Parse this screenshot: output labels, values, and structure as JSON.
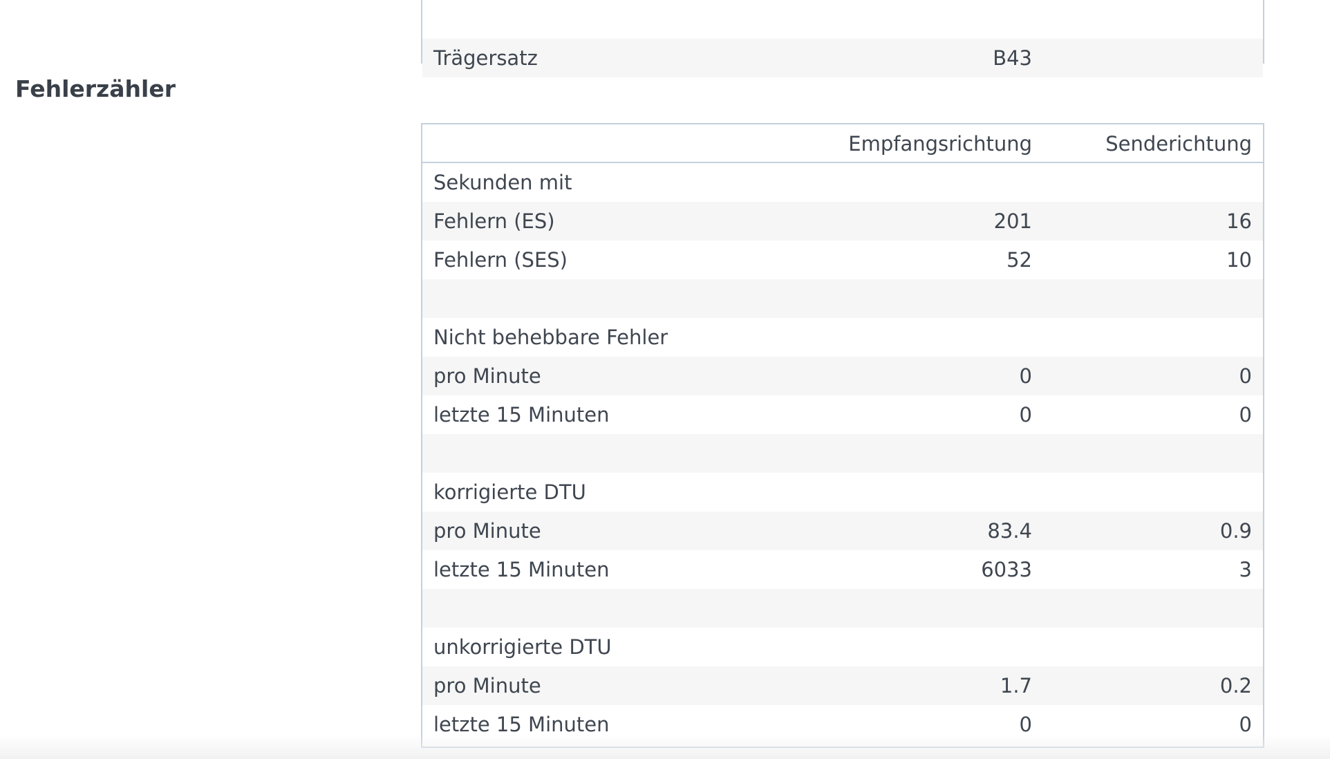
{
  "top_table": {
    "rows": [
      {
        "label": "",
        "value": ""
      },
      {
        "label": "Trägersatz",
        "value": "B43"
      }
    ]
  },
  "section": {
    "title": "Fehlerzähler"
  },
  "errors_table": {
    "columns": [
      "",
      "Empfangsrichtung",
      "Senderichtung"
    ],
    "rows": [
      {
        "label": "Sekunden mit",
        "rx": "",
        "tx": ""
      },
      {
        "label": "Fehlern (ES)",
        "rx": "201",
        "tx": "16"
      },
      {
        "label": "Fehlern (SES)",
        "rx": "52",
        "tx": "10"
      },
      {
        "label": "",
        "rx": "",
        "tx": ""
      },
      {
        "label": "Nicht behebbare Fehler",
        "rx": "",
        "tx": ""
      },
      {
        "label": "pro Minute",
        "rx": "0",
        "tx": "0"
      },
      {
        "label": "letzte 15 Minuten",
        "rx": "0",
        "tx": "0"
      },
      {
        "label": "",
        "rx": "",
        "tx": ""
      },
      {
        "label": "korrigierte DTU",
        "rx": "",
        "tx": ""
      },
      {
        "label": "pro Minute",
        "rx": "83.4",
        "tx": "0.9"
      },
      {
        "label": "letzte 15 Minuten",
        "rx": "6033",
        "tx": "3"
      },
      {
        "label": "",
        "rx": "",
        "tx": ""
      },
      {
        "label": "unkorrigierte DTU",
        "rx": "",
        "tx": ""
      },
      {
        "label": "pro Minute",
        "rx": "1.7",
        "tx": "0.2"
      },
      {
        "label": "letzte 15 Minuten",
        "rx": "0",
        "tx": "0"
      }
    ]
  }
}
